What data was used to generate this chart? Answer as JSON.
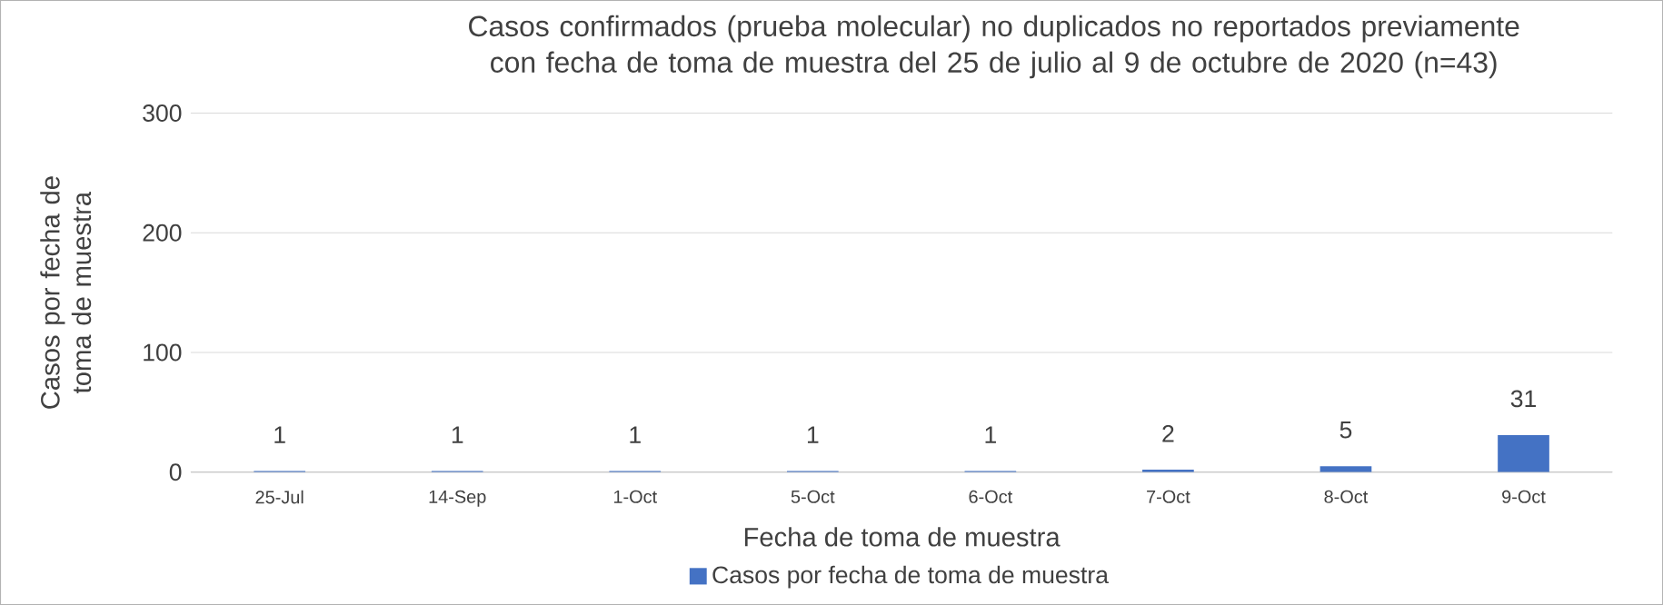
{
  "chart_data": {
    "type": "bar",
    "title": "Casos confirmados (prueba molecular) no duplicados no reportados previamente con fecha de toma de muestra del 25 de julio al 9 de octubre de 2020 (n=43)",
    "xlabel": "Fecha de toma de muestra",
    "ylabel": "Casos por fecha de toma de muestra",
    "categories": [
      "25-Jul",
      "14-Sep",
      "1-Oct",
      "5-Oct",
      "6-Oct",
      "7-Oct",
      "8-Oct",
      "9-Oct"
    ],
    "series": [
      {
        "name": "Casos por fecha de toma de muestra",
        "color": "#4472c4",
        "values": [
          1,
          1,
          1,
          1,
          1,
          2,
          5,
          31
        ]
      }
    ],
    "ylim": [
      0,
      300
    ],
    "yticks": [
      0,
      100,
      200,
      300
    ],
    "grid": "y",
    "legend": "bottom",
    "data_labels": true
  }
}
